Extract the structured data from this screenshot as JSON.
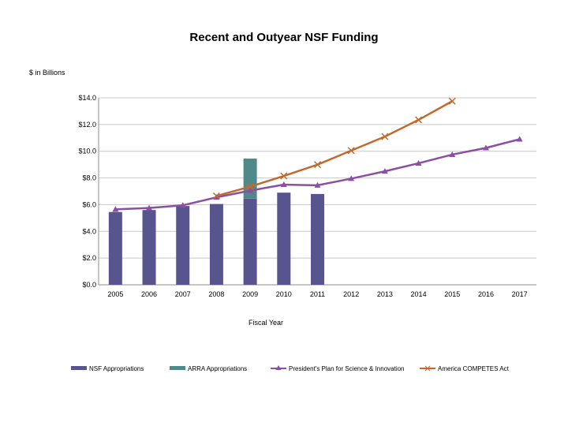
{
  "chart_data": {
    "type": "bar+line",
    "title": "Recent and Outyear NSF Funding",
    "ylabel": "$ in Billions",
    "xlabel": "Fiscal Year",
    "ylim": [
      0,
      14
    ],
    "yticks": [
      0,
      2,
      4,
      6,
      8,
      10,
      12,
      14
    ],
    "ytick_labels": [
      "$0.0",
      "$2.0",
      "$4.0",
      "$6.0",
      "$8.0",
      "$10.0",
      "$12.0",
      "$14.0"
    ],
    "categories": [
      "2005",
      "2006",
      "2007",
      "2008",
      "2009",
      "2010",
      "2011",
      "2012",
      "2013",
      "2014",
      "2015",
      "2016",
      "2017"
    ],
    "bars": [
      {
        "name": "NSF Appropriations",
        "color": "#57548e",
        "values": [
          5.45,
          5.6,
          5.9,
          6.05,
          6.45,
          6.9,
          6.8,
          null,
          null,
          null,
          null,
          null,
          null
        ]
      },
      {
        "name": "ARRA Appropriations",
        "color": "#4f8a8b",
        "values": [
          null,
          null,
          null,
          null,
          3.0,
          null,
          null,
          null,
          null,
          null,
          null,
          null,
          null
        ]
      }
    ],
    "lines": [
      {
        "name": "President's Plan for Science & Innovation",
        "color": "#8b4fa3",
        "marker": "triangle",
        "values": [
          5.65,
          5.75,
          5.95,
          6.55,
          7.05,
          7.5,
          7.45,
          7.95,
          8.5,
          9.1,
          9.75,
          10.25,
          10.9
        ]
      },
      {
        "name": "America COMPETES Act",
        "color": "#c06a2e",
        "marker": "x",
        "values": [
          null,
          null,
          null,
          6.65,
          7.35,
          8.15,
          9.0,
          10.05,
          11.1,
          12.35,
          13.75,
          null,
          null
        ]
      }
    ],
    "legend": [
      "NSF Appropriations",
      "ARRA Appropriations",
      "President's Plan for Science & Innovation",
      "America COMPETES Act"
    ],
    "grid": true,
    "legend_position": "bottom"
  }
}
